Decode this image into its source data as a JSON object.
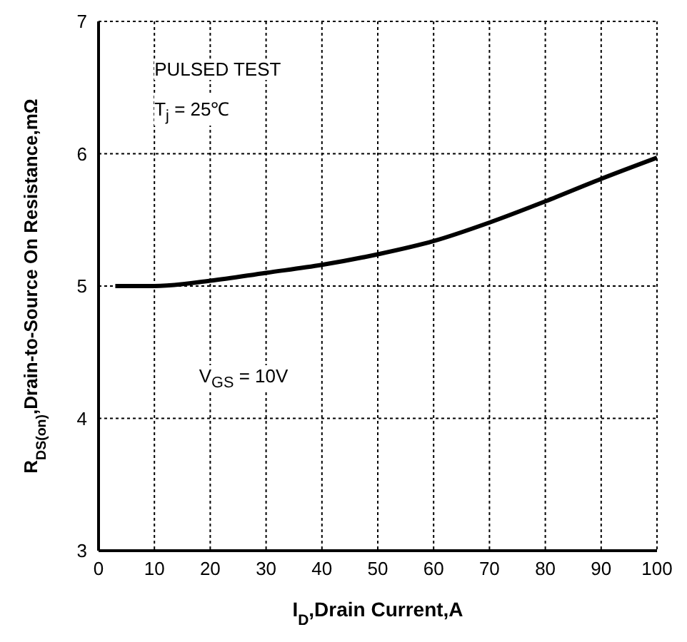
{
  "chart_data": {
    "type": "line",
    "xlabel": "I$_{D}$,Drain Current,A",
    "ylabel": "R$_{DS(on)}$,Drain-to-Source On Resistance,mΩ",
    "annotations": [
      "PULSED TEST",
      "T$_{j}$ = 25℃",
      "V$_{GS}$ = 10V"
    ],
    "x": [
      3,
      10,
      20,
      30,
      40,
      50,
      60,
      70,
      80,
      90,
      100
    ],
    "series": [
      {
        "color": "#000000",
        "values": [
          5.0,
          5.0,
          5.04,
          5.1,
          5.16,
          5.24,
          5.34,
          5.48,
          5.64,
          5.81,
          5.97
        ]
      }
    ],
    "xlim": [
      0,
      100
    ],
    "xticks": [
      0,
      10,
      20,
      30,
      40,
      50,
      60,
      70,
      80,
      90,
      100
    ],
    "ylim": [
      3,
      7
    ],
    "yticks": [
      3,
      4,
      5,
      6,
      7
    ],
    "grid": true,
    "marker": "none",
    "line_style": "solid"
  }
}
